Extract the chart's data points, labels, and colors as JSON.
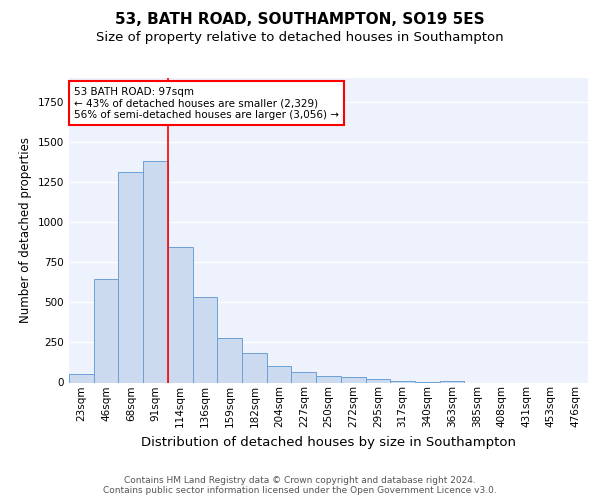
{
  "title1": "53, BATH ROAD, SOUTHAMPTON, SO19 5ES",
  "title2": "Size of property relative to detached houses in Southampton",
  "xlabel": "Distribution of detached houses by size in Southampton",
  "ylabel": "Number of detached properties",
  "categories": [
    "23sqm",
    "46sqm",
    "68sqm",
    "91sqm",
    "114sqm",
    "136sqm",
    "159sqm",
    "182sqm",
    "204sqm",
    "227sqm",
    "250sqm",
    "272sqm",
    "295sqm",
    "317sqm",
    "340sqm",
    "363sqm",
    "385sqm",
    "408sqm",
    "431sqm",
    "453sqm",
    "476sqm"
  ],
  "values": [
    55,
    645,
    1310,
    1380,
    843,
    530,
    275,
    185,
    105,
    65,
    38,
    35,
    22,
    10,
    5,
    10,
    0,
    0,
    0,
    0,
    0
  ],
  "bar_color": "#ccdaf0",
  "bar_edge_color": "#6b9fd4",
  "vline_x": 3.5,
  "vline_color": "red",
  "annotation_text": "53 BATH ROAD: 97sqm\n← 43% of detached houses are smaller (2,329)\n56% of semi-detached houses are larger (3,056) →",
  "annotation_box_color": "white",
  "annotation_box_edge_color": "red",
  "ylim": [
    0,
    1900
  ],
  "footer": "Contains HM Land Registry data © Crown copyright and database right 2024.\nContains public sector information licensed under the Open Government Licence v3.0.",
  "bg_color": "#edf2fc",
  "grid_color": "white",
  "title1_fontsize": 11,
  "title2_fontsize": 9.5,
  "xlabel_fontsize": 9.5,
  "ylabel_fontsize": 8.5,
  "tick_fontsize": 7.5,
  "footer_fontsize": 6.5,
  "annotation_fontsize": 7.5
}
